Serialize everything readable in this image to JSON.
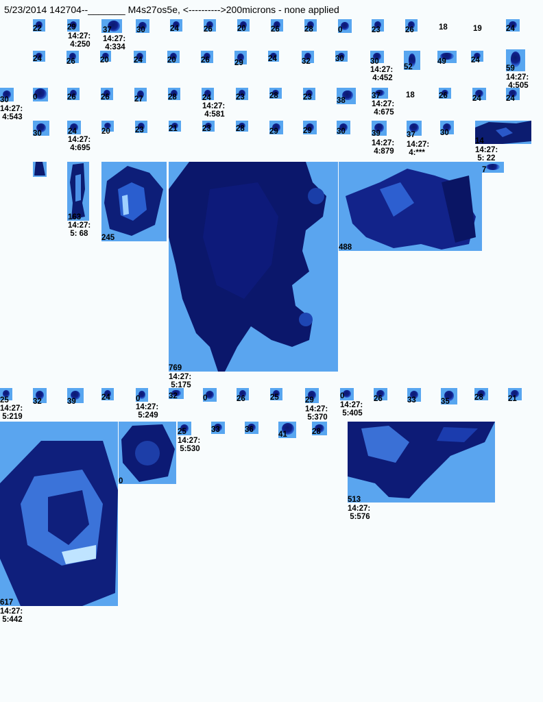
{
  "header": {
    "date_time": "5/23/2014 142704--",
    "blank": "_______",
    "overlap_text": "M4s27os5e,",
    "arrow_text": "<---------->200microns - none applied"
  },
  "particles": {
    "row1": [
      "22",
      "29",
      "37",
      "30",
      "24",
      "26",
      "20",
      "26",
      "28",
      "0",
      "23",
      "26",
      "18",
      "19",
      "24"
    ],
    "row1_times": [
      "14:27:\n 4:250",
      "14:27:\n 4:334"
    ],
    "row2": [
      "24",
      "26",
      "20",
      "24",
      "20",
      "26",
      "29",
      "24",
      "32",
      "30",
      "30",
      "52",
      "49",
      "24",
      "59"
    ],
    "row2_times": [
      "14:27:\n 4:452",
      "14:27:\n 4:505"
    ],
    "row3": [
      "30",
      "0",
      "26",
      "26",
      "27",
      "28",
      "24",
      "23",
      "28",
      "23",
      "38",
      "37",
      "18",
      "26",
      "24",
      "24"
    ],
    "row3_times": [
      "14:27:\n 4:543",
      "14:27:\n 4:581",
      "14:27:\n 4:675"
    ],
    "row4": [
      "30",
      "24",
      "20",
      "23",
      "21",
      "23",
      "28",
      "29",
      "29",
      "30",
      "39",
      "37",
      "30",
      "14"
    ],
    "row4_times": [
      "14:27:\n 4:695",
      "14:27:\n 4:879",
      "14:27:\n 4:***",
      "14:27:\n 5: 22"
    ],
    "row5": [
      "7"
    ],
    "big1": {
      "size": "163",
      "time": "14:27:\n 5: 68"
    },
    "big2": {
      "size": "245"
    },
    "big3": {
      "size": "769",
      "time": "14:27:\n 5:175"
    },
    "big4": {
      "size": "488"
    },
    "row6": [
      "25",
      "32",
      "39",
      "24",
      "0",
      "32",
      "0",
      "26",
      "25",
      "29",
      "0",
      "26",
      "33",
      "35",
      "28",
      "21"
    ],
    "row6_times": [
      "14:27:\n 5:219",
      "14:27:\n 5:249",
      "14:27:\n 5:370",
      "14:27:\n 5:405"
    ],
    "row7": [
      "25",
      "33",
      "36",
      "41",
      "28"
    ],
    "row7_times": [
      "14:27:\n 5:530"
    ],
    "big5": {
      "size": "617",
      "time": "14:27:\n 5:442"
    },
    "big6": {
      "size": "0"
    },
    "big7": {
      "size": "513",
      "time": "14:27:\n 5:576"
    }
  },
  "colors": {
    "tile_bg": "#58a6f0",
    "particle_dark": "#0b1a6e",
    "page_bg": "#f8fcfd"
  }
}
